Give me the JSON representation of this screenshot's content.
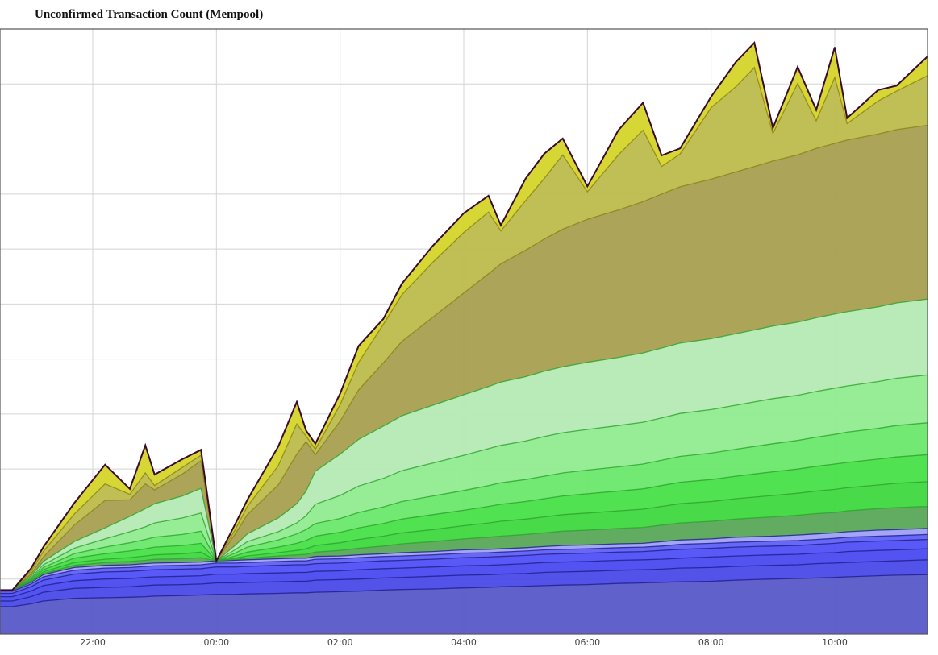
{
  "title": "Unconfirmed Transaction Count (Mempool)",
  "chart_data": {
    "type": "area",
    "stacked": true,
    "title": "Unconfirmed Transaction Count (Mempool)",
    "xlabel": "",
    "ylabel": "",
    "grid": true,
    "legend": "none",
    "x_ticks": [
      "22:00",
      "00:00",
      "02:00",
      "04:00",
      "06:00",
      "08:00",
      "10:00"
    ],
    "x_tick_hours": [
      22,
      24,
      26,
      28,
      30,
      32,
      34
    ],
    "xlim_hours": [
      20.5,
      35.5
    ],
    "ylim": [
      0,
      11
    ],
    "y_gridlines": 11,
    "x": [
      20.5,
      20.7,
      21.0,
      21.2,
      21.7,
      22.2,
      22.6,
      22.85,
      23.0,
      23.45,
      23.75,
      24.0,
      24.3,
      24.5,
      25.0,
      25.3,
      25.45,
      25.6,
      26.0,
      26.3,
      26.7,
      27.0,
      27.5,
      28.0,
      28.4,
      28.6,
      29.0,
      29.3,
      29.6,
      30.0,
      30.5,
      30.9,
      31.2,
      31.5,
      32.0,
      32.4,
      32.7,
      33.0,
      33.4,
      33.7,
      34.0,
      34.2,
      34.7,
      35.0,
      35.5
    ],
    "colors": [
      "#5858c8",
      "#4a4ae8",
      "#4a4af0",
      "#5050f8",
      "#6060f8",
      "#a0a0f8",
      "#58a858",
      "#3ed83e",
      "#48e048",
      "#6ae86a",
      "#90ec90",
      "#b4eab4",
      "#a8a050",
      "#bcbc4c",
      "#d4d42a"
    ],
    "series": [
      {
        "values": [
          0.5,
          0.5,
          0.55,
          0.6,
          0.65,
          0.66,
          0.67,
          0.68,
          0.69,
          0.7,
          0.71,
          0.72,
          0.72,
          0.73,
          0.74,
          0.75,
          0.75,
          0.76,
          0.77,
          0.78,
          0.8,
          0.81,
          0.82,
          0.84,
          0.85,
          0.86,
          0.87,
          0.88,
          0.89,
          0.9,
          0.92,
          0.93,
          0.94,
          0.95,
          0.96,
          0.98,
          0.99,
          1.0,
          1.01,
          1.02,
          1.03,
          1.04,
          1.06,
          1.07,
          1.08
        ]
      },
      {
        "values": [
          0.1,
          0.1,
          0.13,
          0.16,
          0.18,
          0.19,
          0.19,
          0.2,
          0.2,
          0.2,
          0.2,
          0.21,
          0.21,
          0.21,
          0.21,
          0.21,
          0.21,
          0.22,
          0.22,
          0.22,
          0.22,
          0.22,
          0.23,
          0.23,
          0.23,
          0.23,
          0.23,
          0.24,
          0.24,
          0.24,
          0.24,
          0.24,
          0.24,
          0.25,
          0.25,
          0.25,
          0.25,
          0.25,
          0.25,
          0.26,
          0.26,
          0.26,
          0.26,
          0.26,
          0.27
        ]
      },
      {
        "values": [
          0.08,
          0.08,
          0.1,
          0.12,
          0.14,
          0.15,
          0.15,
          0.15,
          0.15,
          0.15,
          0.15,
          0.16,
          0.16,
          0.16,
          0.16,
          0.16,
          0.16,
          0.16,
          0.16,
          0.17,
          0.17,
          0.17,
          0.17,
          0.17,
          0.17,
          0.17,
          0.18,
          0.18,
          0.18,
          0.18,
          0.18,
          0.18,
          0.18,
          0.18,
          0.19,
          0.19,
          0.19,
          0.19,
          0.19,
          0.19,
          0.19,
          0.2,
          0.2,
          0.2,
          0.2
        ]
      },
      {
        "values": [
          0.06,
          0.06,
          0.08,
          0.1,
          0.12,
          0.13,
          0.13,
          0.13,
          0.13,
          0.13,
          0.13,
          0.13,
          0.13,
          0.13,
          0.14,
          0.14,
          0.14,
          0.14,
          0.14,
          0.14,
          0.14,
          0.14,
          0.14,
          0.15,
          0.15,
          0.15,
          0.15,
          0.15,
          0.15,
          0.15,
          0.15,
          0.15,
          0.16,
          0.16,
          0.16,
          0.16,
          0.16,
          0.16,
          0.16,
          0.16,
          0.17,
          0.17,
          0.17,
          0.17,
          0.17
        ]
      },
      {
        "values": [
          0.04,
          0.04,
          0.05,
          0.06,
          0.07,
          0.07,
          0.07,
          0.07,
          0.07,
          0.07,
          0.07,
          0.07,
          0.07,
          0.07,
          0.07,
          0.07,
          0.07,
          0.08,
          0.08,
          0.08,
          0.08,
          0.08,
          0.08,
          0.08,
          0.08,
          0.08,
          0.08,
          0.08,
          0.08,
          0.08,
          0.08,
          0.08,
          0.08,
          0.09,
          0.09,
          0.09,
          0.09,
          0.09,
          0.09,
          0.09,
          0.09,
          0.09,
          0.09,
          0.09,
          0.09
        ]
      },
      {
        "values": [
          0.02,
          0.02,
          0.03,
          0.04,
          0.05,
          0.05,
          0.05,
          0.05,
          0.05,
          0.05,
          0.05,
          0.04,
          0.05,
          0.05,
          0.05,
          0.05,
          0.05,
          0.05,
          0.05,
          0.05,
          0.05,
          0.06,
          0.06,
          0.06,
          0.06,
          0.06,
          0.06,
          0.06,
          0.07,
          0.07,
          0.07,
          0.07,
          0.08,
          0.08,
          0.08,
          0.09,
          0.09,
          0.09,
          0.1,
          0.1,
          0.1,
          0.1,
          0.11,
          0.11,
          0.11
        ]
      },
      {
        "values": [
          0.0,
          0.0,
          0.01,
          0.02,
          0.04,
          0.05,
          0.06,
          0.06,
          0.07,
          0.07,
          0.08,
          0.0,
          0.02,
          0.03,
          0.05,
          0.06,
          0.07,
          0.08,
          0.1,
          0.12,
          0.14,
          0.16,
          0.18,
          0.2,
          0.22,
          0.23,
          0.24,
          0.25,
          0.26,
          0.27,
          0.28,
          0.29,
          0.3,
          0.31,
          0.32,
          0.33,
          0.34,
          0.35,
          0.36,
          0.37,
          0.37,
          0.38,
          0.39,
          0.4,
          0.4
        ]
      },
      {
        "values": [
          0.0,
          0.0,
          0.01,
          0.03,
          0.05,
          0.06,
          0.07,
          0.08,
          0.08,
          0.09,
          0.1,
          0.0,
          0.02,
          0.04,
          0.06,
          0.08,
          0.1,
          0.12,
          0.14,
          0.16,
          0.18,
          0.2,
          0.22,
          0.24,
          0.26,
          0.27,
          0.28,
          0.29,
          0.3,
          0.31,
          0.32,
          0.33,
          0.34,
          0.35,
          0.36,
          0.37,
          0.38,
          0.39,
          0.4,
          0.41,
          0.42,
          0.42,
          0.43,
          0.44,
          0.45
        ]
      },
      {
        "values": [
          0.0,
          0.0,
          0.02,
          0.04,
          0.08,
          0.1,
          0.12,
          0.13,
          0.14,
          0.15,
          0.16,
          0.0,
          0.04,
          0.07,
          0.1,
          0.13,
          0.15,
          0.17,
          0.19,
          0.21,
          0.23,
          0.25,
          0.27,
          0.28,
          0.3,
          0.31,
          0.32,
          0.33,
          0.34,
          0.35,
          0.36,
          0.37,
          0.38,
          0.39,
          0.4,
          0.41,
          0.42,
          0.43,
          0.44,
          0.45,
          0.46,
          0.46,
          0.47,
          0.48,
          0.49
        ]
      },
      {
        "values": [
          0.0,
          0.0,
          0.02,
          0.04,
          0.08,
          0.12,
          0.15,
          0.17,
          0.18,
          0.2,
          0.22,
          0.0,
          0.05,
          0.09,
          0.13,
          0.17,
          0.2,
          0.23,
          0.25,
          0.28,
          0.3,
          0.32,
          0.34,
          0.36,
          0.38,
          0.39,
          0.4,
          0.41,
          0.42,
          0.43,
          0.44,
          0.45,
          0.46,
          0.47,
          0.48,
          0.49,
          0.5,
          0.51,
          0.52,
          0.53,
          0.54,
          0.55,
          0.56,
          0.57,
          0.58
        ]
      },
      {
        "values": [
          0.0,
          0.0,
          0.02,
          0.05,
          0.1,
          0.15,
          0.2,
          0.23,
          0.26,
          0.3,
          0.33,
          0.0,
          0.06,
          0.1,
          0.15,
          0.2,
          0.25,
          0.35,
          0.42,
          0.48,
          0.52,
          0.56,
          0.6,
          0.64,
          0.67,
          0.68,
          0.7,
          0.72,
          0.73,
          0.74,
          0.75,
          0.76,
          0.77,
          0.78,
          0.79,
          0.8,
          0.81,
          0.82,
          0.82,
          0.83,
          0.84,
          0.84,
          0.85,
          0.86,
          0.87
        ]
      },
      {
        "values": [
          0.0,
          0.0,
          0.03,
          0.06,
          0.12,
          0.2,
          0.28,
          0.33,
          0.35,
          0.4,
          0.45,
          0.0,
          0.08,
          0.14,
          0.25,
          0.35,
          0.45,
          0.6,
          0.75,
          0.85,
          0.95,
          1.0,
          1.05,
          1.1,
          1.13,
          1.15,
          1.17,
          1.19,
          1.2,
          1.22,
          1.24,
          1.26,
          1.27,
          1.28,
          1.29,
          1.3,
          1.31,
          1.32,
          1.33,
          1.34,
          1.35,
          1.35,
          1.36,
          1.37,
          1.38
        ]
      },
      {
        "values": [
          0.0,
          0.0,
          0.04,
          0.08,
          0.3,
          0.5,
          0.3,
          0.45,
          0.25,
          0.4,
          0.5,
          0.0,
          0.2,
          0.35,
          0.6,
          0.9,
          0.9,
          0.3,
          0.6,
          0.9,
          1.15,
          1.35,
          1.6,
          1.85,
          2.05,
          2.15,
          2.3,
          2.4,
          2.5,
          2.6,
          2.68,
          2.75,
          2.8,
          2.84,
          2.9,
          2.94,
          2.97,
          3.0,
          3.04,
          3.08,
          3.1,
          3.12,
          3.14,
          3.15,
          3.16
        ]
      },
      {
        "values": [
          0.0,
          0.0,
          0.05,
          0.1,
          0.2,
          0.3,
          0.1,
          0.2,
          0.08,
          0.12,
          0.1,
          0.0,
          0.08,
          0.15,
          0.35,
          0.55,
          0.1,
          0.1,
          0.3,
          0.5,
          0.7,
          0.85,
          1.0,
          1.1,
          1.12,
          0.6,
          0.9,
          1.1,
          1.35,
          0.5,
          1.0,
          1.3,
          0.5,
          0.6,
          1.3,
          1.55,
          1.8,
          0.5,
          1.3,
          0.5,
          1.2,
          0.3,
          0.6,
          0.7,
          0.9
        ]
      },
      {
        "values": [
          0.0,
          0.0,
          0.05,
          0.08,
          0.2,
          0.35,
          0.1,
          0.5,
          0.2,
          0.15,
          0.1,
          0.0,
          0.1,
          0.12,
          0.35,
          0.4,
          0.1,
          0.1,
          0.2,
          0.3,
          0.1,
          0.2,
          0.3,
          0.35,
          0.3,
          0.1,
          0.4,
          0.45,
          0.3,
          0.1,
          0.45,
          0.5,
          0.2,
          0.1,
          0.2,
          0.45,
          0.45,
          0.1,
          0.3,
          0.2,
          0.55,
          0.1,
          0.2,
          0.1,
          0.35
        ]
      }
    ],
    "total_line_color": "#3a0a2a"
  }
}
